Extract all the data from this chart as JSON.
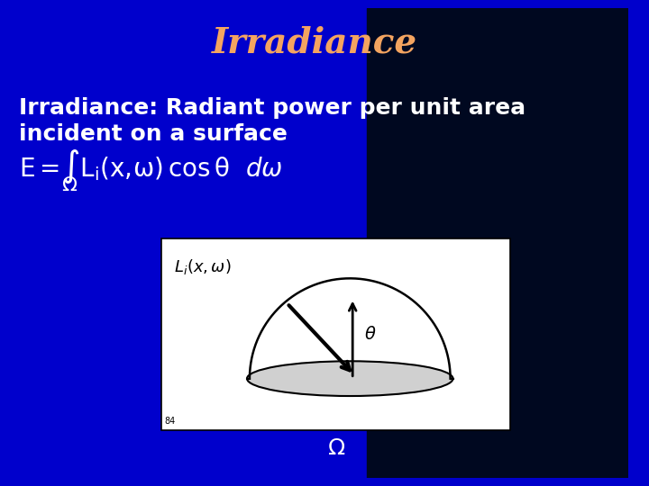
{
  "title": "Irradiance",
  "title_color": "#F4A460",
  "title_fontsize": 28,
  "bg_color": "#0000CC",
  "text_color": "#FFFFFF",
  "body_text_line1": "Irradiance: Radiant power per unit area",
  "body_text_line2": "incident on a surface",
  "body_fontsize": 18,
  "formula_fontsize": 20,
  "omega_fontsize": 16,
  "diagram_bg": "#FFFFFF",
  "diagram_border": "#000000",
  "slide_number": "84",
  "dark_bg_color": "#000820",
  "swoosh_color": "#2244DD"
}
